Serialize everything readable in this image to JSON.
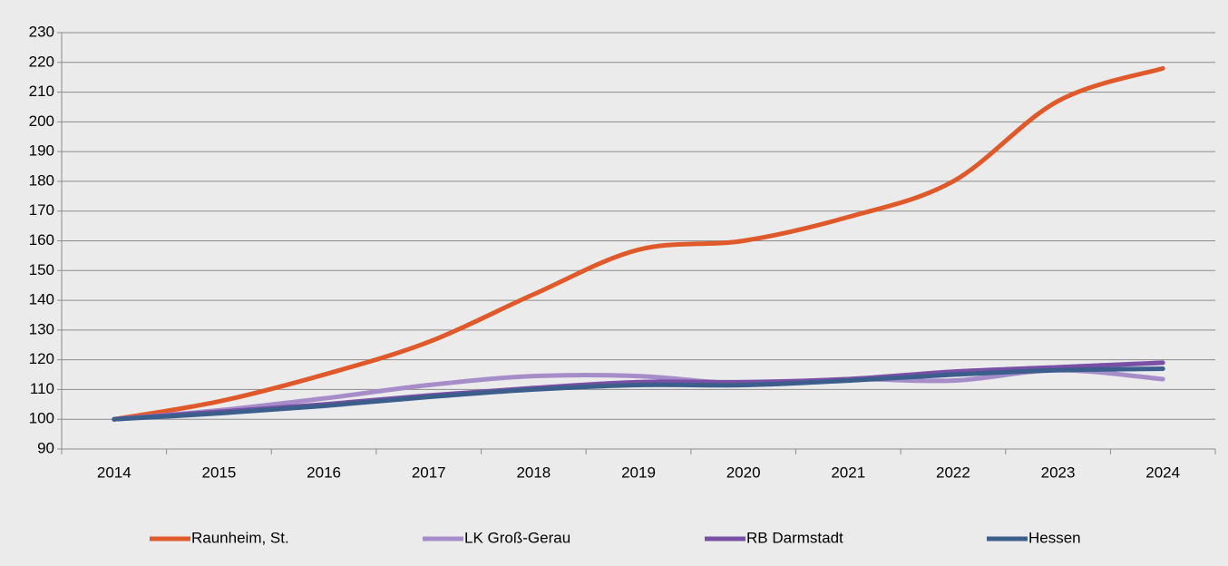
{
  "chart_data": {
    "type": "line",
    "categories": [
      "2014",
      "2015",
      "2016",
      "2017",
      "2018",
      "2019",
      "2020",
      "2021",
      "2022",
      "2023",
      "2024"
    ],
    "series": [
      {
        "name": "Raunheim, St.",
        "color": "#e0592a",
        "values": [
          100,
          106,
          115,
          126,
          142,
          157,
          160,
          168,
          180,
          207,
          218
        ]
      },
      {
        "name": "LK Groß-Gerau",
        "color": "#a68cc9",
        "values": [
          100,
          103,
          107,
          111.5,
          114.5,
          114.5,
          112,
          113.5,
          113,
          116.5,
          113.5
        ]
      },
      {
        "name": "RB Darmstadt",
        "color": "#7a4fa6",
        "values": [
          100,
          102.5,
          105,
          108,
          110.5,
          112.5,
          112.5,
          113.5,
          116,
          117.5,
          119
        ]
      },
      {
        "name": "Hessen",
        "color": "#3b5e8d",
        "values": [
          100,
          102,
          104.5,
          107.5,
          110,
          111.5,
          111.5,
          113,
          115,
          116.5,
          117
        ]
      }
    ],
    "ylim": [
      90,
      230
    ],
    "yticks": [
      90,
      100,
      110,
      120,
      130,
      140,
      150,
      160,
      170,
      180,
      190,
      200,
      210,
      220,
      230
    ],
    "grid": true,
    "legend": "bottom"
  }
}
